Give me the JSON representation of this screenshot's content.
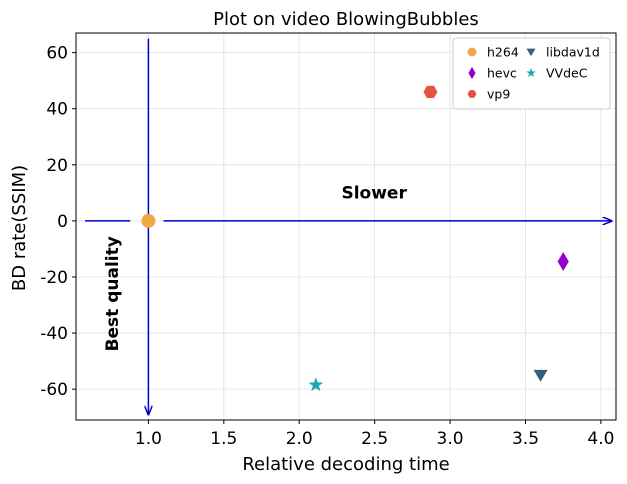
{
  "chart_data": {
    "type": "scatter",
    "title": "Plot on video BlowingBubbles",
    "xlabel": "Relative decoding time",
    "ylabel": "BD rate(SSIM)",
    "xlim": [
      0.52,
      4.1
    ],
    "ylim": [
      -71,
      67
    ],
    "xticks": [
      1.0,
      1.5,
      2.0,
      2.5,
      3.0,
      3.5,
      4.0
    ],
    "xtick_labels": [
      "1.0",
      "1.5",
      "2.0",
      "2.5",
      "3.0",
      "3.5",
      "4.0"
    ],
    "yticks": [
      60,
      40,
      20,
      0,
      -20,
      -40,
      -60
    ],
    "ytick_labels": [
      "60",
      "40",
      "20",
      "0",
      "-20",
      "-40",
      "-60"
    ],
    "grid": true,
    "legend_position": "top-right",
    "series": [
      {
        "name": "h264",
        "x": 1.0,
        "y": 0,
        "color": "#f0a848",
        "marker": "circle"
      },
      {
        "name": "hevc",
        "x": 3.75,
        "y": -14.5,
        "color": "#9400d3",
        "marker": "diamond"
      },
      {
        "name": "vp9",
        "x": 2.87,
        "y": 46,
        "color": "#e5533f",
        "marker": "hexagon"
      },
      {
        "name": "libdav1d",
        "x": 3.6,
        "y": -55,
        "color": "#34607e",
        "marker": "triangle-down"
      },
      {
        "name": "VVdeC",
        "x": 2.11,
        "y": -58.5,
        "color": "#18a9b5",
        "marker": "star"
      }
    ],
    "annotations": [
      {
        "text": "Slower",
        "x": 2.28,
        "y": 8,
        "rotation": 0
      },
      {
        "text": "Best quality",
        "x": 0.8,
        "y": -26,
        "rotation": -90
      }
    ],
    "arrows": [
      {
        "from": [
          0.58,
          0
        ],
        "to": [
          4.07,
          0
        ],
        "color": "#0000cd",
        "gap": [
          0.88,
          1.1
        ]
      },
      {
        "from": [
          1.0,
          65
        ],
        "to": [
          1.0,
          -69
        ],
        "color": "#0000cd"
      }
    ]
  }
}
